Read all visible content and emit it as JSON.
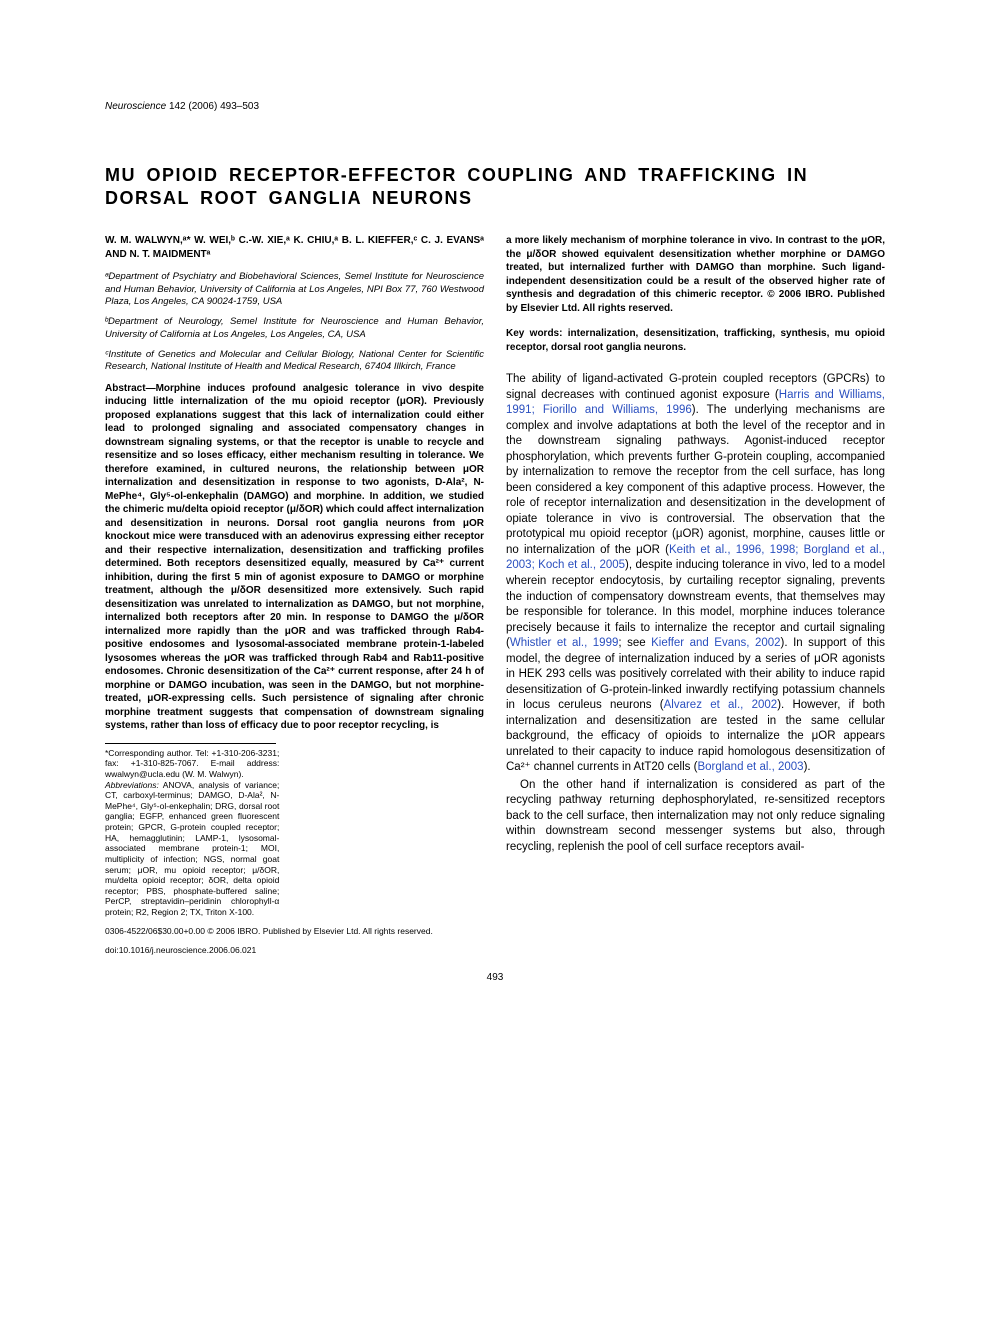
{
  "journal": {
    "name": "Neuroscience",
    "volume": "142 (2006) 493–503"
  },
  "title": "MU OPIOID RECEPTOR-EFFECTOR COUPLING AND TRAFFICKING IN DORSAL ROOT GANGLIA NEURONS",
  "authors": "W. M. WALWYN,ᵃ* W. WEI,ᵇ C.-W. XIE,ᵃ K. CHIU,ᵃ B. L. KIEFFER,ᶜ C. J. EVANSᵃ AND N. T. MAIDMENTᵃ",
  "affiliations": {
    "a": "ᵃDepartment of Psychiatry and Biobehavioral Sciences, Semel Institute for Neuroscience and Human Behavior, University of California at Los Angeles, NPI Box 77, 760 Westwood Plaza, Los Angeles, CA 90024-1759, USA",
    "b": "ᵇDepartment of Neurology, Semel Institute for Neuroscience and Human Behavior, University of California at Los Angeles, Los Angeles, CA, USA",
    "c": "ᶜInstitute of Genetics and Molecular and Cellular Biology, National Center for Scientific Research, National Institute of Health and Medical Research, 67404 Illkirch, France"
  },
  "abstract_label": "Abstract—",
  "abstract": "Morphine induces profound analgesic tolerance in vivo despite inducing little internalization of the mu opioid receptor (μOR). Previously proposed explanations suggest that this lack of internalization could either lead to prolonged signaling and associated compensatory changes in downstream signaling systems, or that the receptor is unable to recycle and resensitize and so loses efficacy, either mechanism resulting in tolerance. We therefore examined, in cultured neurons, the relationship between μOR internalization and desensitization in response to two agonists, D-Ala², N-MePhe⁴, Gly⁵-ol-enkephalin (DAMGO) and morphine. In addition, we studied the chimeric mu/delta opioid receptor (μ/δOR) which could affect internalization and desensitization in neurons. Dorsal root ganglia neurons from μOR knockout mice were transduced with an adenovirus expressing either receptor and their respective internalization, desensitization and trafficking profiles determined. Both receptors desensitized equally, measured by Ca²⁺ current inhibition, during the first 5 min of agonist exposure to DAMGO or morphine treatment, although the μ/δOR desensitized more extensively. Such rapid desensitization was unrelated to internalization as DAMGO, but not morphine, internalized both receptors after 20 min. In response to DAMGO the μ/δOR internalized more rapidly than the μOR and was trafficked through Rab4-positive endosomes and lysosomal-associated membrane protein-1-labeled lysosomes whereas the μOR was trafficked through Rab4 and Rab11-positive endosomes. Chronic desensitization of the Ca²⁺ current response, after 24 h of morphine or DAMGO incubation, was seen in the DAMGO, but not morphine-treated, μOR-expressing cells. Such persistence of signaling after chronic morphine treatment suggests that compensation of downstream signaling systems, rather than loss of efficacy due to poor receptor recycling, is",
  "abstract_cont": "a more likely mechanism of morphine tolerance in vivo. In contrast to the μOR, the μ/δOR showed equivalent desensitization whether morphine or DAMGO treated, but internalized further with DAMGO than morphine. Such ligand-independent desensitization could be a result of the observed higher rate of synthesis and degradation of this chimeric receptor. © 2006 IBRO. Published by Elsevier Ltd. All rights reserved.",
  "keywords": "Key words: internalization, desensitization, trafficking, synthesis, mu opioid receptor, dorsal root ganglia neurons.",
  "intro_p1a": "The ability of ligand-activated G-protein coupled receptors (GPCRs) to signal decreases with continued agonist exposure (",
  "intro_cite1": "Harris and Williams, 1991; Fiorillo and Williams, 1996",
  "intro_p1b": "). The underlying mechanisms are complex and involve adaptations at both the level of the receptor and in the downstream signaling pathways. Agonist-induced receptor phosphorylation, which prevents further G-protein coupling, accompanied by internalization to remove the receptor from the cell surface, has long been considered a key component of this adaptive process. However, the role of receptor internalization and desensitization in the development of opiate tolerance in vivo is controversial. The observation that the prototypical mu opioid receptor (μOR) agonist, morphine, causes little or no internalization of the μOR (",
  "intro_cite2": "Keith et al., 1996, 1998; Borgland et al., 2003; Koch et al., 2005",
  "intro_p1c": "), despite inducing tolerance in vivo, led to a model wherein receptor endocytosis, by curtailing receptor signaling, prevents the induction of compensatory downstream events, that themselves may be responsible for tolerance. In this model, morphine induces tolerance precisely because it fails to internalize the receptor and curtail signaling (",
  "intro_cite3": "Whistler et al., 1999",
  "intro_p1d": "; see ",
  "intro_cite4": "Kieffer and Evans, 2002",
  "intro_p1e": "). In support of this model, the degree of internalization induced by a series of μOR agonists in HEK 293 cells was positively correlated with their ability to induce rapid desensitization of G-protein-linked inwardly rectifying potassium channels in locus ceruleus neurons (",
  "intro_cite5": "Alvarez et al., 2002",
  "intro_p1f": "). However, if both internalization and desensitization are tested in the same cellular background, the efficacy of opioids to internalize the μOR appears unrelated to their capacity to induce rapid homologous desensitization of Ca²⁺ channel currents in AtT20 cells (",
  "intro_cite6": "Borgland et al., 2003",
  "intro_p1g": ").",
  "intro_p2": "On the other hand if internalization is considered as part of the recycling pathway returning dephosphorylated, re-sensitized receptors back to the cell surface, then internalization may not only reduce signaling within downstream second messenger systems but also, through recycling, replenish the pool of cell surface receptors avail-",
  "corresponding": "*Corresponding author. Tel: +1-310-206-3231; fax: +1-310-825-7067. E-mail address: wwalwyn@ucla.edu (W. M. Walwyn).",
  "abbreviations": "Abbreviations: ANOVA, analysis of variance; CT, carboxyl-terminus; DAMGO, D-Ala², N-MePhe⁴, Gly⁵-ol-enkephalin; DRG, dorsal root ganglia; EGFP, enhanced green fluorescent protein; GPCR, G-protein coupled receptor; HA, hemagglutinin; LAMP-1, lysosomal-associated membrane protein-1; MOI, multiplicity of infection; NGS, normal goat serum; μOR, mu opioid receptor; μ/δOR, mu/delta opioid receptor; δOR, delta opioid receptor; PBS, phosphate-buffered saline; PerCP, streptavidin–peridinin chlorophyll-α protein; R2, Region 2; TX, Triton X-100.",
  "copyright": "0306-4522/06$30.00+0.00 © 2006 IBRO. Published by Elsevier Ltd. All rights reserved.",
  "doi": "doi:10.1016/j.neuroscience.2006.06.021",
  "page_number": "493",
  "colors": {
    "text": "#000000",
    "citation": "#2a4fbf",
    "background": "#ffffff"
  }
}
